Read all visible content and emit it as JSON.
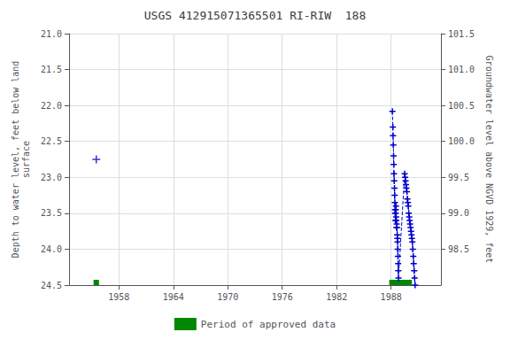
{
  "chart_data": {
    "type": "scatter",
    "title": "USGS 412915071365501 RI-RIW  188",
    "ylabel": "Depth to water level, feet below land\nsurface",
    "y2label": "Groundwater level above NGVD 1929, feet",
    "xlim": [
      1952.5,
      1993.5
    ],
    "xticks": [
      1958,
      1964,
      1970,
      1976,
      1982,
      1988
    ],
    "ylim": [
      24.5,
      21.0
    ],
    "yticks": [
      {
        "value": 21.0,
        "label": "21.0"
      },
      21.5,
      {
        "value": 22.0,
        "label": "22.0"
      },
      22.5,
      {
        "value": 23.0,
        "label": "23.0"
      },
      23.5,
      {
        "value": 24.0,
        "label": "24.0"
      },
      24.5
    ],
    "y2lim": [
      98.0,
      101.5
    ],
    "y2ticks": [
      98.5,
      {
        "value": 99.0,
        "label": "99.0"
      },
      99.5,
      {
        "value": 100.0,
        "label": "100.0"
      },
      100.5,
      {
        "value": 101.0,
        "label": "101.0"
      },
      101.5
    ],
    "grid": true,
    "legend": "bottom",
    "series": [
      {
        "type": "scatter",
        "marker": "plus",
        "color": "#0000cc",
        "x": [
          1955.5
        ],
        "values": [
          22.75
        ]
      },
      {
        "type": "line",
        "marker": "plus",
        "line_style": "dashed",
        "color": "#0000cc",
        "x": [
          1988.15,
          1988.2,
          1988.22,
          1988.25,
          1988.28,
          1988.3,
          1988.32,
          1988.35,
          1988.38,
          1988.4,
          1988.42,
          1988.44,
          1988.46,
          1988.48,
          1988.5,
          1988.52,
          1988.54,
          1988.56,
          1988.58,
          1988.6,
          1988.62,
          1988.65,
          1988.68,
          1988.7,
          1988.72,
          1988.74,
          1988.76,
          1988.78,
          1988.8,
          1988.82,
          1989.5,
          1989.55,
          1989.6,
          1989.65,
          1989.7,
          1989.75,
          1989.8,
          1989.85,
          1989.9,
          1989.95,
          1990.0,
          1990.05,
          1990.1,
          1990.15,
          1990.2,
          1990.25,
          1990.3,
          1990.35,
          1990.4,
          1990.45,
          1990.5,
          1990.55,
          1990.6,
          1990.65
        ],
        "values": [
          22.08,
          22.3,
          22.42,
          22.55,
          22.7,
          22.82,
          22.95,
          23.05,
          23.15,
          23.25,
          23.35,
          23.45,
          23.5,
          23.6,
          23.5,
          23.45,
          23.4,
          23.55,
          23.6,
          23.7,
          23.65,
          23.7,
          23.8,
          23.85,
          23.9,
          24.0,
          24.1,
          24.2,
          24.3,
          24.4,
          22.95,
          23.0,
          23.05,
          23.1,
          23.15,
          23.2,
          23.3,
          23.35,
          23.4,
          23.5,
          23.55,
          23.6,
          23.65,
          23.7,
          23.75,
          23.8,
          23.85,
          23.9,
          24.0,
          24.1,
          24.2,
          24.3,
          24.4,
          24.5
        ]
      },
      {
        "type": "range",
        "name": "Period of approved data",
        "color": "#008800",
        "x": [
          1955.2,
          1987.8
        ],
        "width": [
          0.6,
          2.5
        ],
        "values": [
          24.5,
          24.5
        ]
      }
    ]
  }
}
